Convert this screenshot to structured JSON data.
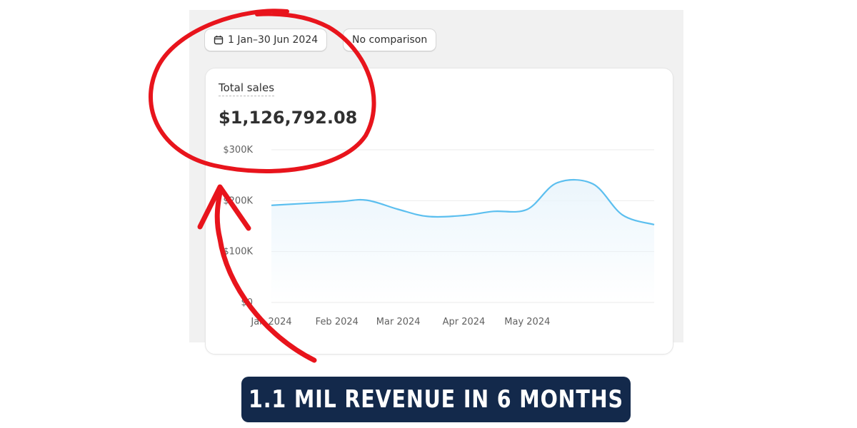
{
  "filters": {
    "date_range": "1 Jan–30 Jun 2024",
    "comparison": "No comparison"
  },
  "card": {
    "title": "Total sales",
    "value": "$1,126,792.08"
  },
  "banner": {
    "text": "1.1 MIL REVENUE IN 6 MONTHS"
  },
  "colors": {
    "line": "#5cbfef",
    "annotation": "#e8141c",
    "banner_bg": "#13294b"
  },
  "chart_data": {
    "type": "area",
    "x": [
      "2024-01-01",
      "2024-02-01",
      "2024-02-15",
      "2024-03-01",
      "2024-03-15",
      "2024-04-01",
      "2024-04-15",
      "2024-05-01",
      "2024-05-15",
      "2024-06-01",
      "2024-06-15",
      "2024-06-30"
    ],
    "x_tick_labels": [
      "Jan 2024",
      "Feb 2024",
      "Mar 2024",
      "Apr 2024",
      "May 2024"
    ],
    "y": [
      191000,
      198000,
      201000,
      183000,
      169000,
      171000,
      179000,
      183000,
      235000,
      233000,
      172000,
      153000
    ],
    "ylim": [
      0,
      300000
    ],
    "y_tick_labels": [
      "$0",
      "$100K",
      "$200K",
      "$300K"
    ],
    "grid": true
  }
}
